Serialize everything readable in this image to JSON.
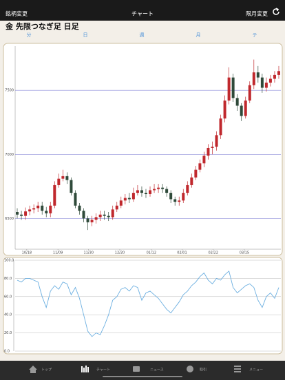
{
  "header": {
    "left": "銘柄変更",
    "center": "チャート",
    "right": "限月変更"
  },
  "title": "金 先限つなぎ足 日足",
  "tabs": [
    "分",
    "日",
    "週",
    "月",
    "テ"
  ],
  "chart_data": [
    {
      "type": "candlestick",
      "open": [
        6550,
        6530,
        6520,
        6555,
        6570,
        6580,
        6600,
        6560,
        6540,
        6600,
        6760,
        6810,
        6830,
        6800,
        6700,
        6600,
        6560,
        6500,
        6470,
        6490,
        6510,
        6530,
        6520,
        6510,
        6570,
        6600,
        6640,
        6660,
        6650,
        6700,
        6720,
        6700,
        6690,
        6720,
        6730,
        6740,
        6730,
        6700,
        6650,
        6630,
        6640,
        6700,
        6760,
        6820,
        6880,
        6930,
        6990,
        7050,
        7060,
        7150,
        7280,
        7420,
        7600,
        7440,
        7380,
        7300,
        7420,
        7540,
        7640,
        7600,
        7520,
        7560,
        7590,
        7620
      ],
      "high": [
        6580,
        6560,
        6585,
        6600,
        6610,
        6630,
        6630,
        6590,
        6630,
        6790,
        6850,
        6880,
        6860,
        6820,
        6720,
        6620,
        6580,
        6520,
        6520,
        6540,
        6560,
        6560,
        6550,
        6600,
        6630,
        6670,
        6690,
        6700,
        6740,
        6760,
        6750,
        6730,
        6750,
        6770,
        6770,
        6770,
        6750,
        6720,
        6670,
        6670,
        6730,
        6790,
        6850,
        6910,
        6960,
        7020,
        7080,
        7100,
        7180,
        7310,
        7460,
        7680,
        7630,
        7470,
        7400,
        7450,
        7570,
        7740,
        7690,
        7630,
        7600,
        7620,
        7650,
        7690
      ],
      "low": [
        6500,
        6490,
        6490,
        6525,
        6540,
        6550,
        6530,
        6510,
        6510,
        6580,
        6740,
        6790,
        6770,
        6680,
        6580,
        6530,
        6470,
        6410,
        6440,
        6460,
        6480,
        6490,
        6480,
        6490,
        6550,
        6580,
        6610,
        6620,
        6630,
        6680,
        6670,
        6660,
        6670,
        6700,
        6700,
        6700,
        6670,
        6620,
        6600,
        6600,
        6620,
        6680,
        6740,
        6800,
        6860,
        6900,
        6960,
        7000,
        7030,
        7120,
        7250,
        7390,
        7410,
        7340,
        7260,
        7280,
        7400,
        7510,
        7560,
        7480,
        7490,
        7530,
        7560,
        7590
      ],
      "close": [
        6530,
        6520,
        6555,
        6570,
        6580,
        6600,
        6560,
        6540,
        6600,
        6760,
        6810,
        6830,
        6800,
        6700,
        6600,
        6560,
        6500,
        6470,
        6490,
        6510,
        6530,
        6520,
        6510,
        6570,
        6600,
        6640,
        6660,
        6650,
        6700,
        6720,
        6700,
        6690,
        6720,
        6730,
        6740,
        6730,
        6700,
        6650,
        6630,
        6640,
        6700,
        6760,
        6820,
        6880,
        6930,
        6990,
        7050,
        7060,
        7150,
        7280,
        7420,
        7600,
        7440,
        7380,
        7300,
        7420,
        7540,
        7640,
        7600,
        7520,
        7560,
        7590,
        7620,
        7650
      ],
      "xlim": [
        -0.5,
        63.5
      ],
      "xticks": [
        {
          "value": 2.3,
          "label": "10/18"
        },
        {
          "value": 9.8,
          "label": "11/09"
        },
        {
          "value": 17.2,
          "label": "11/30"
        },
        {
          "value": 24.7,
          "label": "12/20"
        },
        {
          "value": 32.3,
          "label": "01/12"
        },
        {
          "value": 39.7,
          "label": "02/01"
        },
        {
          "value": 47.2,
          "label": "02/22"
        },
        {
          "value": 54.7,
          "label": "03/15"
        }
      ],
      "ylim": [
        6260,
        7845
      ],
      "yticks": [
        6500,
        7000,
        7500
      ],
      "up_color": "#c0282d",
      "down_color": "#2f4a3a",
      "grid_color": "#8a8ad8"
    },
    {
      "type": "line",
      "values": [
        78,
        76,
        80,
        80,
        78,
        76,
        60,
        48,
        66,
        72,
        68,
        76,
        74,
        62,
        70,
        58,
        40,
        22,
        16,
        20,
        18,
        28,
        40,
        56,
        60,
        68,
        70,
        66,
        72,
        70,
        56,
        64,
        66,
        62,
        58,
        52,
        46,
        42,
        48,
        54,
        62,
        66,
        72,
        76,
        82,
        86,
        78,
        74,
        80,
        78,
        84,
        88,
        70,
        64,
        68,
        72,
        74,
        70,
        56,
        48,
        60,
        64,
        58,
        70
      ],
      "xlim": [
        -0.5,
        63.5
      ],
      "ylim": [
        0,
        100
      ],
      "yticks": [
        {
          "value": 0,
          "label": "0.0"
        },
        {
          "value": 20,
          "label": "20.0"
        },
        {
          "value": 40,
          "label": "40.0"
        },
        {
          "value": 60,
          "label": "60.0"
        },
        {
          "value": 80,
          "label": "80.0"
        },
        {
          "value": 100,
          "label": "100.0"
        }
      ],
      "color": "#6aaee0",
      "grid_color": "#b8b8b8"
    }
  ],
  "tab_bar": [
    "トップ",
    "チャート",
    "ニュース",
    "取引",
    "メニュー"
  ]
}
